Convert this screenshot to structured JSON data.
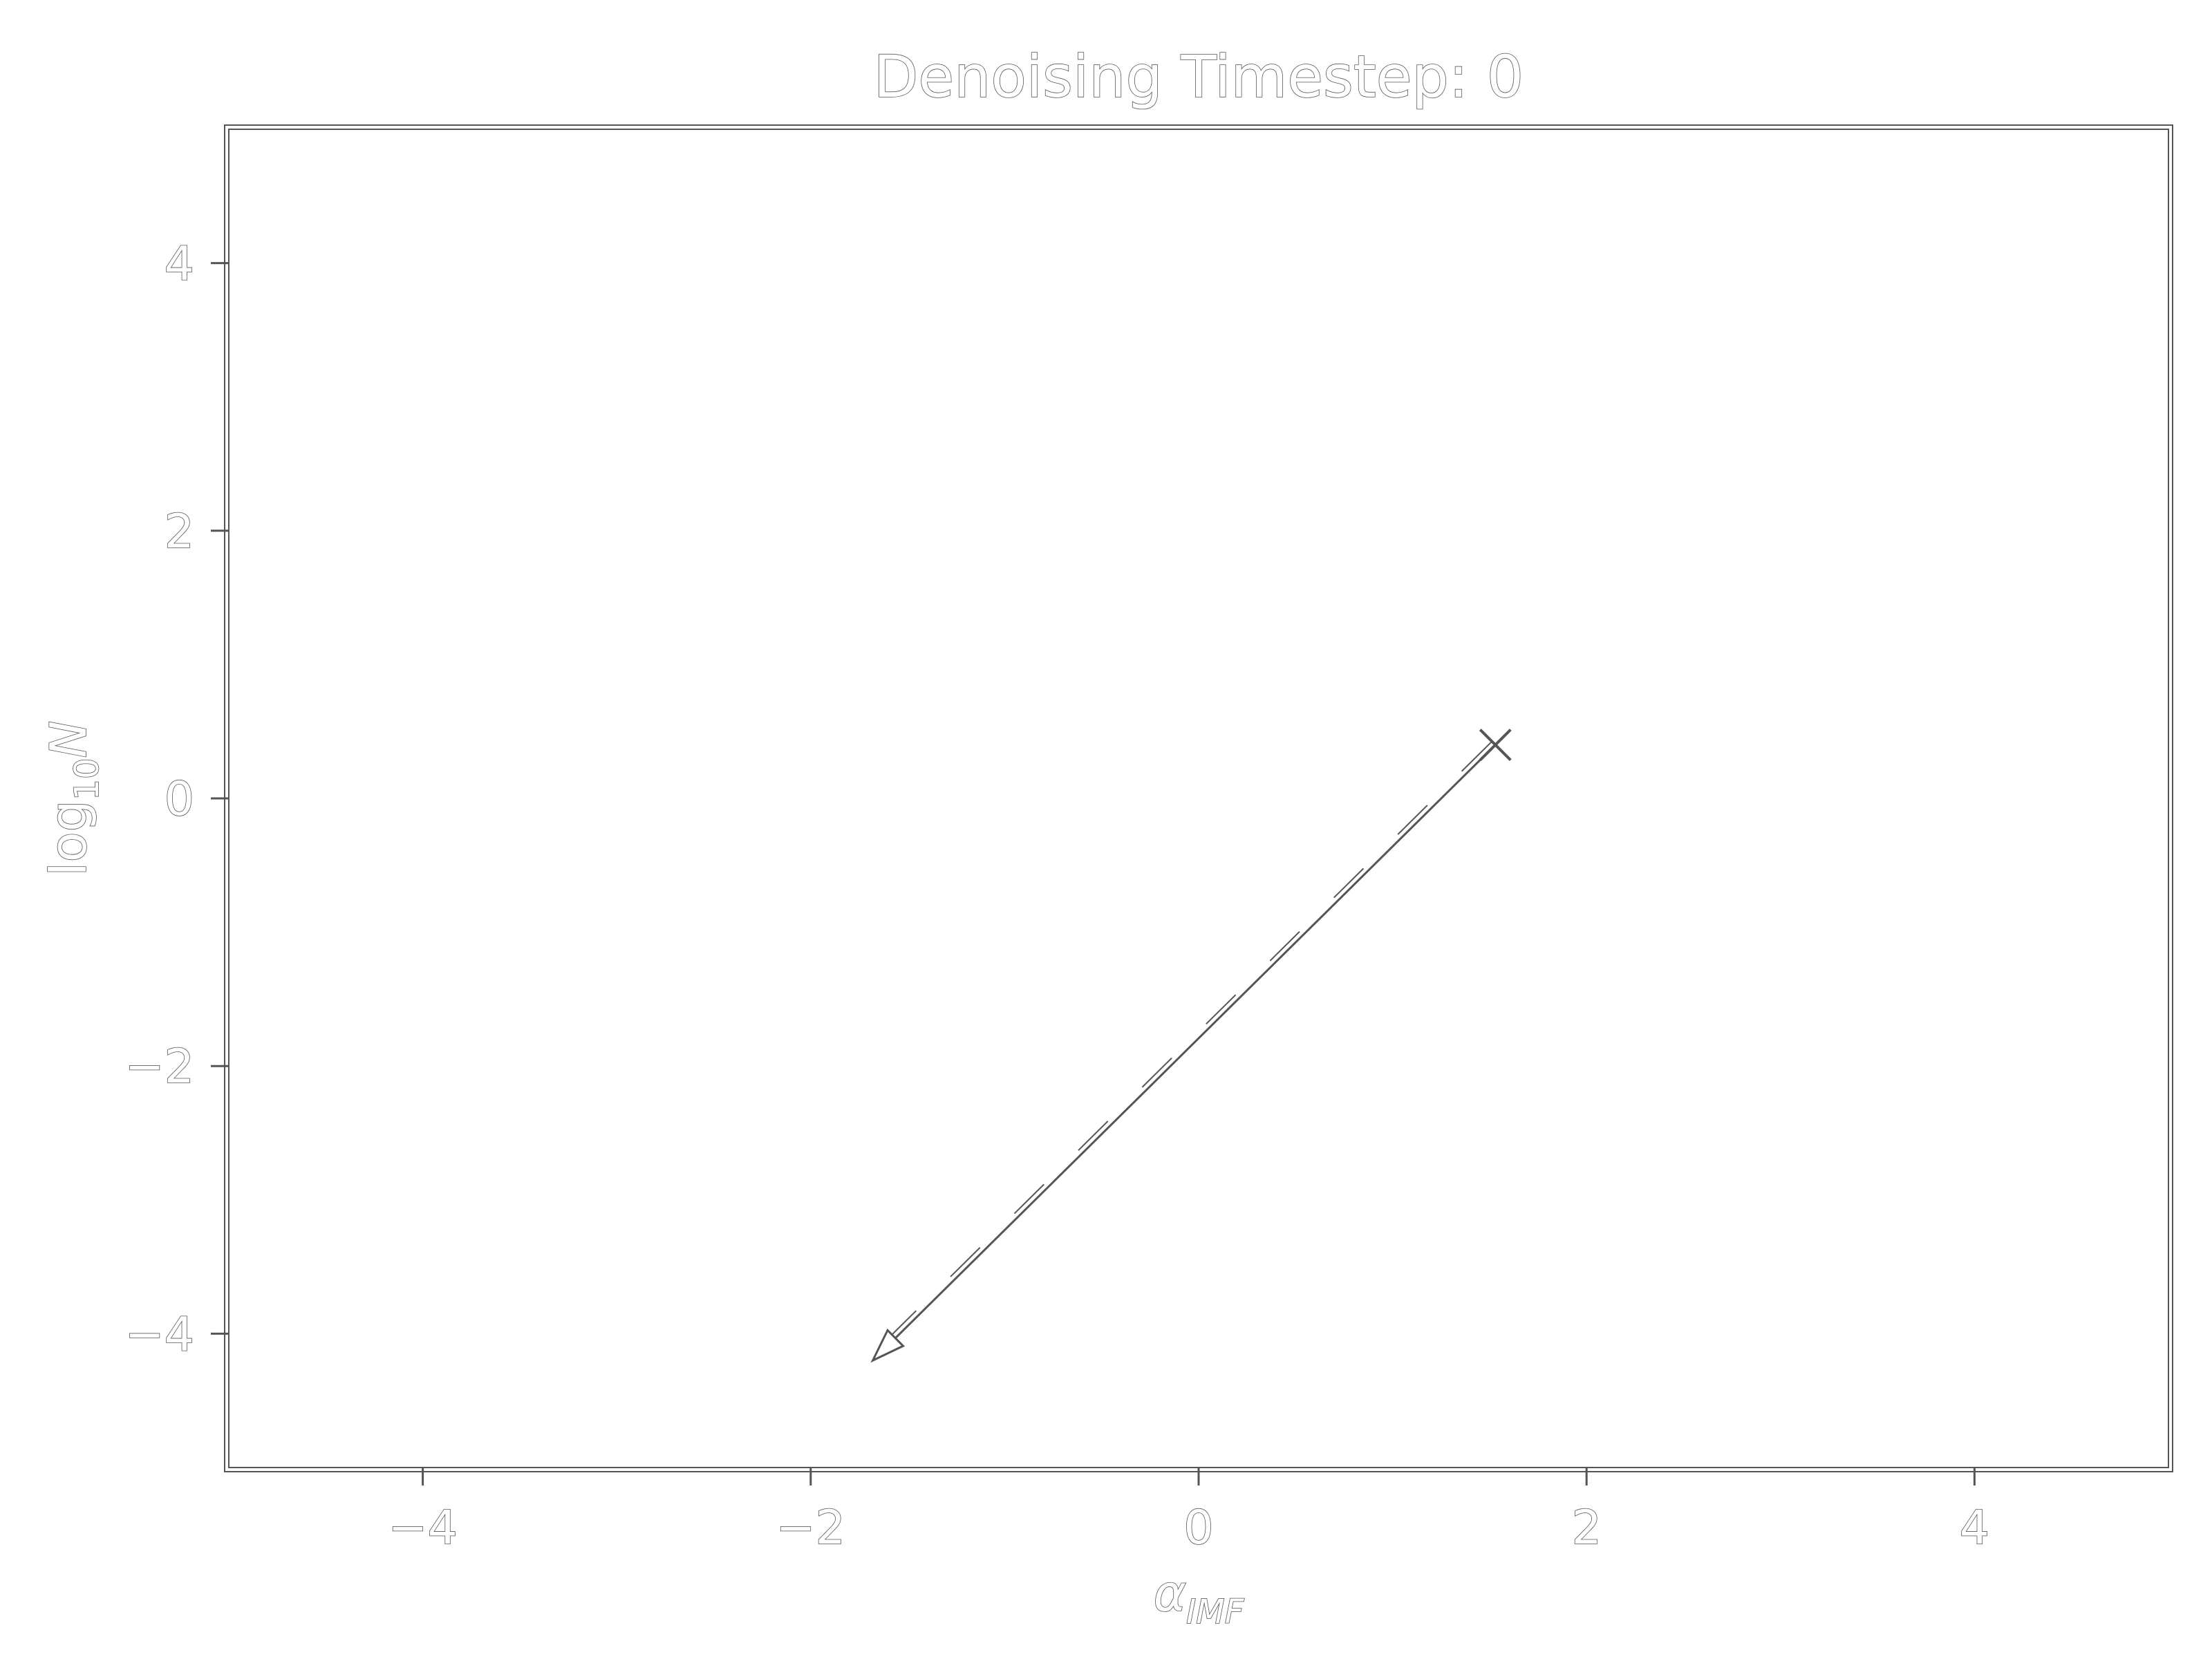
{
  "chart_data": {
    "type": "line",
    "title": "Denoising Timestep: 0",
    "xlabel": "α",
    "xlabel_sub": "IMF",
    "ylabel": "log",
    "ylabel_sub": "10",
    "ylabel_suffix": "N",
    "xlim": [
      -5,
      5
    ],
    "ylim": [
      -5,
      5
    ],
    "xticks": [
      -4,
      -2,
      0,
      2,
      4
    ],
    "xtick_labels": [
      "−4",
      "−2",
      "0",
      "2",
      "4"
    ],
    "yticks": [
      -4,
      -2,
      0,
      2,
      4
    ],
    "ytick_labels": [
      "−4",
      "−2",
      "0",
      "2",
      "4"
    ],
    "grid": false,
    "series": [
      {
        "marker": "x",
        "line_style": "dashed",
        "x": [
          1.53,
          -1.68
        ],
        "y": [
          0.4,
          -4.2
        ]
      }
    ],
    "arrow": {
      "from": [
        1.53,
        0.4
      ],
      "to": [
        -1.68,
        -4.2
      ]
    },
    "colors": {
      "outline": "#555555",
      "fill": "#ffffff"
    }
  }
}
